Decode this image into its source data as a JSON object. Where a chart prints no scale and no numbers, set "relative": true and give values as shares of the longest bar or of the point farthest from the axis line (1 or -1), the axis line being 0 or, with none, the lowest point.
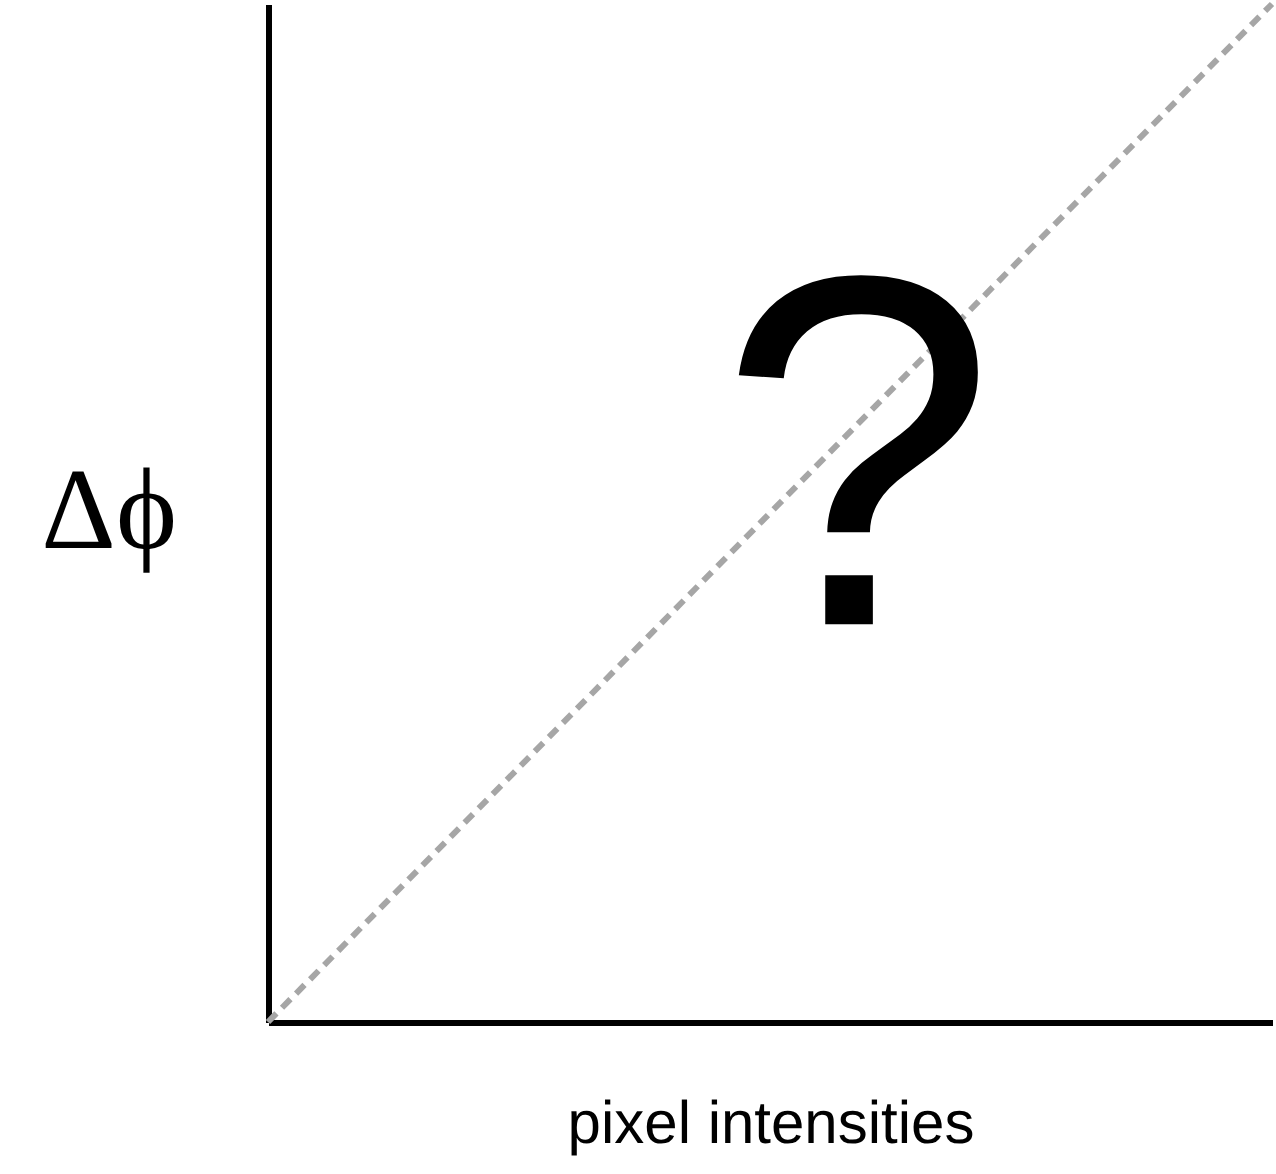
{
  "chart_data": {
    "type": "line",
    "xlabel": "pixel intensities",
    "ylabel": "Δϕ",
    "annotations": [
      "?"
    ],
    "categories": [
      null,
      null
    ],
    "series": [
      {
        "color": "#a6a6a6",
        "values": [
          0,
          1
        ]
      }
    ],
    "relative": true,
    "line_style": "dashed",
    "tick_labels": false
  }
}
